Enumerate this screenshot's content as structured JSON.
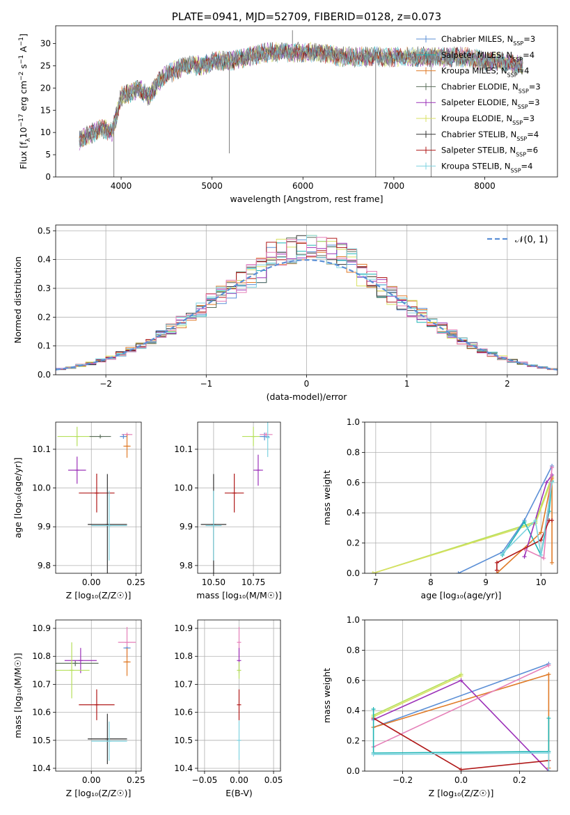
{
  "figure_title": "PLATE=0941, MJD=52709, FIBERID=0128, z=0.073",
  "colors": {
    "Chabrier MILES": "#5b8fd6",
    "Salpeter MILES": "#1fb5b5",
    "Kroupa MILES": "#e07b28",
    "Chabrier ELODIE": "#5a6e5a",
    "Salpeter ELODIE": "#9b30b8",
    "Kroupa ELODIE": "#d8e060",
    "Chabrier STELIB": "#333333",
    "Salpeter STELIB": "#b01818",
    "Kroupa STELIB": "#7ed3e0",
    "pink": "#e57fb8",
    "lime": "#b5e05a",
    "normal": "#5b8fd6",
    "spectrum_gray": "#808080"
  },
  "chart_data": [
    {
      "id": "spectrum",
      "type": "line",
      "title": "PLATE=0941, MJD=52709, FIBERID=0128, z=0.073",
      "xlabel": "wavelength [Angstrom, rest frame]",
      "ylabel_parts": [
        "Flux [f",
        "λ",
        "10",
        "−17",
        " erg cm",
        "−2",
        " s",
        "−1",
        " A",
        "−1",
        "]"
      ],
      "xlim": [
        3280,
        8800
      ],
      "ylim": [
        0,
        34
      ],
      "xticks": [
        4000,
        5000,
        6000,
        7000,
        8000
      ],
      "yticks": [
        0,
        5,
        10,
        15,
        20,
        25,
        30
      ],
      "legend_position": "right",
      "legend": [
        {
          "base": "Chabrier MILES, N",
          "sub": "SSP",
          "tail": "=3",
          "color": "#5b8fd6"
        },
        {
          "base": "Salpeter MILES, N",
          "sub": "SSP",
          "tail": "=4",
          "color": "#1fb5b5"
        },
        {
          "base": "Kroupa MILES, N",
          "sub": "SSP",
          "tail": "=4",
          "color": "#e07b28"
        },
        {
          "base": "Chabrier ELODIE, N",
          "sub": "SSP",
          "tail": "=3",
          "color": "#5a6e5a"
        },
        {
          "base": "Salpeter ELODIE, N",
          "sub": "SSP",
          "tail": "=3",
          "color": "#9b30b8"
        },
        {
          "base": "Kroupa ELODIE, N",
          "sub": "SSP",
          "tail": "=3",
          "color": "#d8e060"
        },
        {
          "base": "Chabrier STELIB, N",
          "sub": "SSP",
          "tail": "=4",
          "color": "#333333"
        },
        {
          "base": "Salpeter STELIB, N",
          "sub": "SSP",
          "tail": "=6",
          "color": "#b01818"
        },
        {
          "base": "Kroupa STELIB, N",
          "sub": "SSP",
          "tail": "=4",
          "color": "#7ed3e0"
        }
      ],
      "envelope": [
        [
          3540,
          8
        ],
        [
          3600,
          9
        ],
        [
          3700,
          10
        ],
        [
          3800,
          11
        ],
        [
          3900,
          10
        ],
        [
          3950,
          14
        ],
        [
          4000,
          18
        ],
        [
          4100,
          19
        ],
        [
          4200,
          20
        ],
        [
          4300,
          18
        ],
        [
          4400,
          21
        ],
        [
          4500,
          23
        ],
        [
          4600,
          24
        ],
        [
          4700,
          25
        ],
        [
          4800,
          25
        ],
        [
          4900,
          25
        ],
        [
          5000,
          26
        ],
        [
          5200,
          26
        ],
        [
          5400,
          27
        ],
        [
          5600,
          28
        ],
        [
          5800,
          28
        ],
        [
          6000,
          28
        ],
        [
          6200,
          28
        ],
        [
          6400,
          27
        ],
        [
          6600,
          27
        ],
        [
          6800,
          27
        ],
        [
          7000,
          27
        ],
        [
          7200,
          27
        ],
        [
          7400,
          27
        ],
        [
          7600,
          27
        ],
        [
          7800,
          27
        ],
        [
          8000,
          26
        ],
        [
          8200,
          26
        ],
        [
          8400,
          25
        ]
      ],
      "spikes": [
        [
          3920,
          0
        ],
        [
          5190,
          5.3
        ],
        [
          5885,
          33
        ],
        [
          6800,
          0
        ],
        [
          7410,
          0
        ]
      ]
    },
    {
      "id": "residuals",
      "type": "histogram",
      "xlabel": "(data-model)/error",
      "ylabel": "Normed distribution",
      "xlim": [
        -2.5,
        2.5
      ],
      "ylim": [
        0,
        0.52
      ],
      "xticks": [
        -2,
        -1,
        0,
        1,
        2
      ],
      "yticks": [
        0,
        0.1,
        0.2,
        0.3,
        0.4,
        0.5
      ],
      "grid": true,
      "legend": [
        {
          "label": "𝒩(0, 1)",
          "color": "#5b8fd6",
          "style": "dashed"
        }
      ],
      "legend_position": "top-right",
      "bin_width": 0.1,
      "bins_from": -2.5,
      "normal_curve": {
        "mean": 0,
        "std": 1
      },
      "series_colors": [
        "#5b8fd6",
        "#1fb5b5",
        "#e07b28",
        "#5a6e5a",
        "#9b30b8",
        "#d8e060",
        "#333333",
        "#b01818",
        "#7ed3e0",
        "#e57fb8"
      ]
    },
    {
      "id": "age_vs_Z",
      "type": "errorbar",
      "xlabel": "Z [log₁₀(Z/Z☉)]",
      "ylabel": "age  [log₁₀(age/yr)]",
      "xlim": [
        -0.2,
        0.28
      ],
      "ylim": [
        9.78,
        10.17
      ],
      "xticks": [
        -0.25,
        0,
        0.25
      ],
      "xticklabels": [
        "",
        "0.00",
        "0.25"
      ],
      "yticks": [
        9.8,
        9.9,
        10.0,
        10.1
      ],
      "grid": true,
      "points": [
        {
          "x": -0.08,
          "y": 10.133,
          "xerr": 0.11,
          "yerr": 0.025,
          "color": "#b5e05a"
        },
        {
          "x": 0.05,
          "y": 10.133,
          "xerr": 0.06,
          "yerr": 0.005,
          "color": "#5a6e5a"
        },
        {
          "x": 0.2,
          "y": 10.138,
          "xerr": 0.03,
          "yerr": 0.005,
          "color": "#e57fb8"
        },
        {
          "x": 0.18,
          "y": 10.133,
          "xerr": 0.02,
          "yerr": 0.006,
          "color": "#5b8fd6"
        },
        {
          "x": 0.2,
          "y": 10.108,
          "xerr": 0.02,
          "yerr": 0.03,
          "color": "#e07b28"
        },
        {
          "x": -0.08,
          "y": 10.046,
          "xerr": 0.05,
          "yerr": 0.035,
          "color": "#9b30b8"
        },
        {
          "x": 0.03,
          "y": 9.987,
          "xerr": 0.1,
          "yerr": 0.05,
          "color": "#b01818"
        },
        {
          "x": 0.09,
          "y": 9.906,
          "xerr": 0.11,
          "yerr": 0.13,
          "color": "#333333"
        },
        {
          "x": 0.1,
          "y": 9.903,
          "xerr": 0.1,
          "yerr": 0.09,
          "color": "#7ed3e0"
        }
      ]
    },
    {
      "id": "age_vs_mass",
      "type": "errorbar",
      "xlabel": "mass [log₁₀(M/M☉)]",
      "ylabel": "",
      "xlim": [
        10.4,
        10.92
      ],
      "ylim": [
        9.78,
        10.17
      ],
      "xticks": [
        10.5,
        10.75
      ],
      "xticklabels": [
        "10.50",
        "10.75"
      ],
      "yticks": [
        9.8,
        9.9,
        10.0,
        10.1
      ],
      "grid": true,
      "points": [
        {
          "x": 10.75,
          "y": 10.133,
          "xerr": 0.07,
          "yerr": 0.025,
          "color": "#b5e05a"
        },
        {
          "x": 10.82,
          "y": 10.133,
          "xerr": 0.03,
          "yerr": 0.01,
          "color": "#5b8fd6"
        },
        {
          "x": 10.83,
          "y": 10.138,
          "xerr": 0.04,
          "yerr": 0.005,
          "color": "#e57fb8"
        },
        {
          "x": 10.84,
          "y": 10.13,
          "xerr": 0.01,
          "yerr": 0.05,
          "color": "#7ed3e0"
        },
        {
          "x": 10.78,
          "y": 10.046,
          "xerr": 0.03,
          "yerr": 0.04,
          "color": "#9b30b8"
        },
        {
          "x": 10.63,
          "y": 9.987,
          "xerr": 0.06,
          "yerr": 0.05,
          "color": "#b01818"
        },
        {
          "x": 10.5,
          "y": 9.906,
          "xerr": 0.08,
          "yerr": 0.13,
          "color": "#333333"
        },
        {
          "x": 10.5,
          "y": 9.903,
          "xerr": 0.05,
          "yerr": 0.09,
          "color": "#7ed3e0"
        }
      ]
    },
    {
      "id": "mass_weight_vs_age",
      "type": "line",
      "xlabel": "age  [log₁₀(age/yr)]",
      "ylabel": "mass weight",
      "xlim": [
        6.8,
        10.3
      ],
      "ylim": [
        0,
        1.0
      ],
      "xticks": [
        7,
        8,
        9,
        10
      ],
      "yticks": [
        0,
        0.2,
        0.4,
        0.6,
        0.8,
        1.0
      ],
      "grid": true,
      "series": [
        {
          "color": "#b5e05a",
          "points": [
            [
              6.95,
              0
            ],
            [
              9.9,
              0.34
            ],
            [
              10.2,
              0.64
            ]
          ]
        },
        {
          "color": "#d8e060",
          "points": [
            [
              6.95,
              0
            ],
            [
              9.9,
              0.33
            ],
            [
              10.2,
              0.62
            ]
          ]
        },
        {
          "color": "#5b8fd6",
          "points": [
            [
              8.5,
              0
            ],
            [
              9.3,
              0.14
            ],
            [
              9.7,
              0.35
            ],
            [
              10.2,
              0.71
            ]
          ]
        },
        {
          "color": "#1fb5b5",
          "points": [
            [
              9.3,
              0.12
            ],
            [
              9.7,
              0.34
            ],
            [
              10.0,
              0.12
            ],
            [
              10.15,
              0.41
            ],
            [
              10.2,
              0.61
            ]
          ]
        },
        {
          "color": "#e07b28",
          "points": [
            [
              9.2,
              0
            ],
            [
              10.0,
              0.27
            ],
            [
              10.2,
              0.63
            ],
            [
              10.2,
              0.07
            ]
          ]
        },
        {
          "color": "#9b30b8",
          "points": [
            [
              9.7,
              0.11
            ],
            [
              10.1,
              0.6
            ],
            [
              10.2,
              0.65
            ]
          ]
        },
        {
          "color": "#e57fb8",
          "points": [
            [
              9.7,
              0.16
            ],
            [
              10.05,
              0.1
            ],
            [
              10.2,
              0.7
            ]
          ]
        },
        {
          "color": "#b01818",
          "points": [
            [
              9.2,
              0.02
            ],
            [
              9.2,
              0.07
            ],
            [
              10.0,
              0.22
            ],
            [
              10.15,
              0.35
            ],
            [
              10.2,
              0.35
            ]
          ]
        },
        {
          "color": "#7ed3e0",
          "points": [
            [
              9.3,
              0.13
            ],
            [
              9.9,
              0.35
            ],
            [
              10.0,
              0.12
            ],
            [
              10.2,
              0.6
            ]
          ]
        }
      ]
    },
    {
      "id": "mass_vs_Z",
      "type": "errorbar",
      "xlabel": "Z [log₁₀(Z/Z☉)]",
      "ylabel": "mass [log₁₀(M/M☉)]",
      "xlim": [
        -0.2,
        0.28
      ],
      "ylim": [
        10.39,
        10.93
      ],
      "xticks": [
        -0.25,
        0,
        0.25
      ],
      "xticklabels": [
        "",
        "0.00",
        "0.25"
      ],
      "yticks": [
        10.4,
        10.5,
        10.6,
        10.7,
        10.8,
        10.9
      ],
      "grid": true,
      "points": [
        {
          "x": -0.09,
          "y": 10.775,
          "xerr": 0.13,
          "yerr": 0.01,
          "color": "#5a6e5a"
        },
        {
          "x": -0.06,
          "y": 10.785,
          "xerr": 0.09,
          "yerr": 0.045,
          "color": "#9b30b8"
        },
        {
          "x": -0.11,
          "y": 10.75,
          "xerr": 0.1,
          "yerr": 0.1,
          "color": "#b5e05a"
        },
        {
          "x": 0.2,
          "y": 10.85,
          "xerr": 0.05,
          "yerr": 0.055,
          "color": "#e57fb8"
        },
        {
          "x": 0.2,
          "y": 10.83,
          "xerr": 0.02,
          "yerr": 0.005,
          "color": "#5b8fd6"
        },
        {
          "x": 0.2,
          "y": 10.78,
          "xerr": 0.02,
          "yerr": 0.05,
          "color": "#e07b28"
        },
        {
          "x": 0.03,
          "y": 10.627,
          "xerr": 0.1,
          "yerr": 0.055,
          "color": "#b01818"
        },
        {
          "x": 0.09,
          "y": 10.505,
          "xerr": 0.11,
          "yerr": 0.09,
          "color": "#333333"
        },
        {
          "x": 0.1,
          "y": 10.497,
          "xerr": 0.1,
          "yerr": 0.07,
          "color": "#7ed3e0"
        }
      ]
    },
    {
      "id": "mass_vs_EBV",
      "type": "errorbar",
      "xlabel": "E(B-V)",
      "ylabel": "",
      "xlim": [
        -0.06,
        0.06
      ],
      "ylim": [
        10.39,
        10.93
      ],
      "xticks": [
        -0.05,
        0,
        0.05
      ],
      "xticklabels": [
        "−0.05",
        "0.00",
        "0.05"
      ],
      "yticks": [
        10.4,
        10.5,
        10.6,
        10.7,
        10.8,
        10.9
      ],
      "grid": true,
      "points": [
        {
          "x": 0,
          "y": 10.85,
          "xerr": 0,
          "yerr": 0.055,
          "color": "#e57fb8"
        },
        {
          "x": 0,
          "y": 10.785,
          "xerr": 0,
          "yerr": 0.045,
          "color": "#9b30b8"
        },
        {
          "x": 0,
          "y": 10.75,
          "xerr": 0,
          "yerr": 0.03,
          "color": "#b5e05a"
        },
        {
          "x": 0,
          "y": 10.627,
          "xerr": 0,
          "yerr": 0.055,
          "color": "#b01818"
        },
        {
          "x": 0,
          "y": 10.5,
          "xerr": 0,
          "yerr": 0.07,
          "color": "#7ed3e0"
        }
      ]
    },
    {
      "id": "mass_weight_vs_Z",
      "type": "line",
      "xlabel": "Z [log₁₀(Z/Z☉)]",
      "ylabel": "mass weight",
      "xlim": [
        -0.33,
        0.33
      ],
      "ylim": [
        0,
        1.0
      ],
      "xticks": [
        -0.2,
        0,
        0.2
      ],
      "xticklabels": [
        "−0.2",
        "0.0",
        "0.2"
      ],
      "yticks": [
        0,
        0.2,
        0.4,
        0.6,
        0.8,
        1.0
      ],
      "grid": true,
      "series": [
        {
          "color": "#5b8fd6",
          "points": [
            [
              -0.3,
              0.29
            ],
            [
              0.3,
              0.71
            ]
          ]
        },
        {
          "color": "#e07b28",
          "points": [
            [
              -0.3,
              0.29
            ],
            [
              0.3,
              0.64
            ],
            [
              0.3,
              0.02
            ]
          ]
        },
        {
          "color": "#b5e05a",
          "points": [
            [
              -0.3,
              0.37
            ],
            [
              0,
              0.64
            ]
          ]
        },
        {
          "color": "#d8e060",
          "points": [
            [
              -0.3,
              0.36
            ],
            [
              0,
              0.63
            ]
          ]
        },
        {
          "color": "#9b30b8",
          "points": [
            [
              -0.3,
              0.34
            ],
            [
              0,
              0.6
            ],
            [
              0.3,
              0.0
            ]
          ]
        },
        {
          "color": "#e57fb8",
          "points": [
            [
              -0.3,
              0.16
            ],
            [
              0.3,
              0.7
            ]
          ]
        },
        {
          "color": "#b01818",
          "points": [
            [
              -0.3,
              0.35
            ],
            [
              0,
              0.01
            ],
            [
              0.3,
              0.07
            ]
          ]
        },
        {
          "color": "#1fb5b5",
          "points": [
            [
              -0.3,
              0.41
            ],
            [
              -0.3,
              0.12
            ],
            [
              0.3,
              0.13
            ],
            [
              0.3,
              0.35
            ]
          ]
        },
        {
          "color": "#7ed3e0",
          "points": [
            [
              -0.3,
              0.11
            ],
            [
              0.3,
              0.12
            ],
            [
              0.3,
              0.0
            ]
          ]
        }
      ]
    }
  ]
}
